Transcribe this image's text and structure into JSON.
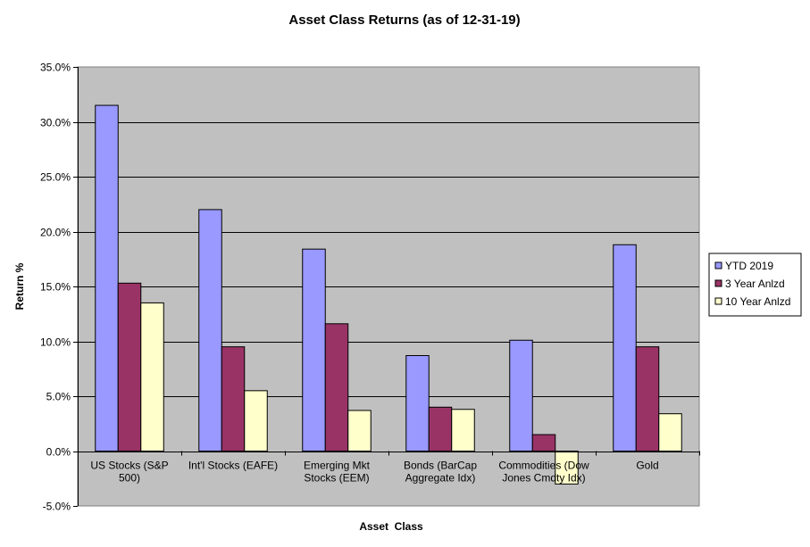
{
  "chart_data": {
    "type": "bar",
    "title": "Asset Class Returns (as of 12-31-19)",
    "xlabel": "Asset  Class",
    "ylabel": "Return %",
    "ylim": [
      -5,
      35
    ],
    "yticks": [
      -5,
      0,
      5,
      10,
      15,
      20,
      25,
      30,
      35
    ],
    "ytick_labels": [
      "-5.0%",
      "0.0%",
      "5.0%",
      "10.0%",
      "15.0%",
      "20.0%",
      "25.0%",
      "30.0%",
      "35.0%"
    ],
    "grid": true,
    "legend_position": "right",
    "plot_background": "#c0c0c0",
    "categories": [
      [
        "US Stocks (S&P",
        "500)"
      ],
      [
        "Int'l Stocks (EAFE)"
      ],
      [
        "Emerging Mkt",
        "Stocks (EEM)"
      ],
      [
        "Bonds (BarCap",
        "Aggregate Idx)"
      ],
      [
        "Commodities (Dow",
        "Jones Cmdty Idx)"
      ],
      [
        "Gold"
      ]
    ],
    "series": [
      {
        "name": "YTD 2019",
        "color": "#9999ff",
        "values": [
          31.5,
          22.0,
          18.4,
          8.7,
          10.1,
          18.8
        ]
      },
      {
        "name": "3 Year Anlzd",
        "color": "#993366",
        "values": [
          15.3,
          9.5,
          11.6,
          4.0,
          1.5,
          9.5
        ]
      },
      {
        "name": "10 Year Anlzd",
        "color": "#ffffcc",
        "values": [
          13.5,
          5.5,
          3.7,
          3.8,
          -3.0,
          3.4
        ]
      }
    ]
  }
}
